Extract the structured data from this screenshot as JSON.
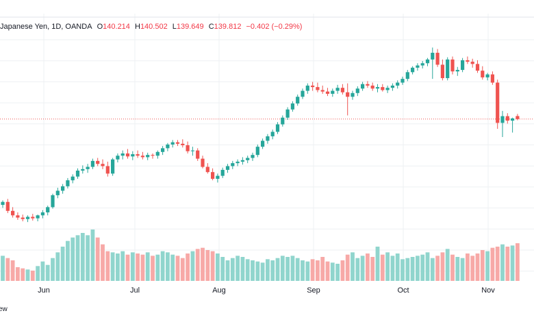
{
  "legend": {
    "symbol": "Japanese Yen, 1D, OANDA",
    "o_label": "O",
    "o_value": "140.214",
    "h_label": "H",
    "h_value": "140.502",
    "l_label": "L",
    "l_value": "139.649",
    "c_label": "C",
    "c_value": "139.812",
    "change": "−0.402 (−0.29%)"
  },
  "corner_text": "ew",
  "colors": {
    "up": "#26a69a",
    "down": "#ef5350",
    "vol_up": "#90d5cd",
    "vol_down": "#f7a9a7",
    "grid": "#eef0f3",
    "price_line": "#ef5350"
  },
  "chart_data": {
    "type": "candlestick",
    "x_tick_labels": [
      "Jun",
      "Jul",
      "Aug",
      "Sep",
      "Oct",
      "Nov"
    ],
    "last_close": 139.812,
    "candles": [
      [
        128.3,
        128.9,
        127.9,
        128.7
      ],
      [
        128.7,
        129.1,
        127.2,
        127.5
      ],
      [
        127.5,
        128.0,
        126.6,
        126.9
      ],
      [
        126.9,
        127.3,
        126.3,
        126.6
      ],
      [
        126.6,
        127.0,
        126.1,
        126.4
      ],
      [
        126.4,
        126.9,
        126.0,
        126.7
      ],
      [
        126.7,
        127.1,
        126.2,
        126.5
      ],
      [
        126.5,
        127.0,
        126.1,
        126.9
      ],
      [
        126.9,
        127.6,
        126.5,
        127.3
      ],
      [
        127.3,
        128.2,
        126.9,
        128.0
      ],
      [
        128.0,
        129.8,
        127.8,
        129.6
      ],
      [
        129.6,
        130.6,
        129.2,
        130.2
      ],
      [
        130.2,
        131.1,
        129.8,
        130.8
      ],
      [
        130.8,
        131.9,
        130.5,
        131.6
      ],
      [
        131.6,
        132.4,
        131.2,
        132.1
      ],
      [
        132.1,
        133.2,
        131.8,
        132.9
      ],
      [
        132.9,
        133.6,
        132.5,
        133.1
      ],
      [
        133.1,
        133.8,
        132.6,
        133.4
      ],
      [
        133.4,
        134.5,
        133.1,
        134.2
      ],
      [
        134.2,
        134.6,
        133.5,
        133.8
      ],
      [
        133.8,
        134.4,
        133.1,
        133.5
      ],
      [
        133.5,
        134.1,
        132.1,
        132.5
      ],
      [
        132.5,
        134.6,
        132.2,
        134.4
      ],
      [
        134.4,
        135.2,
        134.0,
        134.9
      ],
      [
        134.9,
        135.6,
        134.4,
        135.2
      ],
      [
        135.2,
        135.8,
        134.5,
        134.8
      ],
      [
        134.8,
        135.5,
        134.3,
        135.1
      ],
      [
        135.1,
        135.6,
        134.6,
        134.9
      ],
      [
        134.9,
        135.4,
        134.4,
        134.7
      ],
      [
        134.7,
        135.3,
        134.3,
        135.0
      ],
      [
        135.0,
        135.2,
        134.5,
        134.9
      ],
      [
        134.9,
        135.6,
        134.5,
        135.4
      ],
      [
        135.4,
        136.2,
        135.0,
        135.9
      ],
      [
        135.9,
        136.6,
        135.5,
        136.4
      ],
      [
        136.4,
        137.0,
        136.0,
        136.7
      ],
      [
        136.7,
        137.0,
        136.2,
        136.5
      ],
      [
        136.5,
        137.1,
        136.0,
        136.3
      ],
      [
        136.3,
        136.8,
        135.2,
        135.5
      ],
      [
        135.5,
        136.1,
        134.9,
        135.6
      ],
      [
        135.6,
        135.9,
        134.2,
        134.5
      ],
      [
        134.5,
        134.9,
        133.2,
        133.4
      ],
      [
        133.4,
        133.9,
        132.5,
        132.7
      ],
      [
        132.7,
        133.2,
        131.6,
        131.8
      ],
      [
        131.8,
        132.5,
        131.3,
        132.2
      ],
      [
        132.2,
        133.3,
        131.9,
        133.0
      ],
      [
        133.0,
        133.8,
        132.6,
        133.5
      ],
      [
        133.5,
        134.2,
        133.1,
        133.9
      ],
      [
        133.9,
        134.4,
        133.5,
        134.1
      ],
      [
        134.1,
        134.7,
        133.7,
        134.3
      ],
      [
        134.3,
        134.9,
        133.9,
        134.6
      ],
      [
        134.6,
        135.3,
        134.2,
        135.0
      ],
      [
        135.0,
        136.4,
        134.7,
        136.1
      ],
      [
        136.1,
        137.2,
        135.8,
        136.9
      ],
      [
        136.9,
        137.8,
        136.5,
        137.5
      ],
      [
        137.5,
        138.4,
        137.1,
        138.1
      ],
      [
        138.1,
        139.4,
        137.8,
        139.1
      ],
      [
        139.1,
        140.3,
        138.8,
        140.0
      ],
      [
        140.0,
        141.4,
        139.7,
        141.1
      ],
      [
        141.1,
        142.2,
        140.8,
        141.9
      ],
      [
        141.9,
        143.1,
        141.6,
        142.8
      ],
      [
        142.8,
        143.9,
        142.5,
        143.6
      ],
      [
        143.6,
        144.6,
        143.2,
        144.3
      ],
      [
        144.3,
        144.8,
        143.6,
        144.1
      ],
      [
        144.1,
        144.7,
        143.4,
        143.7
      ],
      [
        143.7,
        144.3,
        143.2,
        143.5
      ],
      [
        143.5,
        144.0,
        142.9,
        143.2
      ],
      [
        143.2,
        143.9,
        142.8,
        143.6
      ],
      [
        143.6,
        144.4,
        143.2,
        144.0
      ],
      [
        144.0,
        144.5,
        143.1,
        143.4
      ],
      [
        143.4,
        144.6,
        140.3,
        142.8
      ],
      [
        142.8,
        143.6,
        142.4,
        143.3
      ],
      [
        143.3,
        144.2,
        142.9,
        143.9
      ],
      [
        143.9,
        144.8,
        143.6,
        144.5
      ],
      [
        144.5,
        144.9,
        144.0,
        144.3
      ],
      [
        144.3,
        144.7,
        143.6,
        143.9
      ],
      [
        143.9,
        144.5,
        143.4,
        144.1
      ],
      [
        144.1,
        144.5,
        143.5,
        143.7
      ],
      [
        143.7,
        144.3,
        143.3,
        144.0
      ],
      [
        144.0,
        144.6,
        143.6,
        144.3
      ],
      [
        144.3,
        145.0,
        143.9,
        144.7
      ],
      [
        144.7,
        145.5,
        144.4,
        145.2
      ],
      [
        145.2,
        146.4,
        144.9,
        146.1
      ],
      [
        146.1,
        146.9,
        145.8,
        146.7
      ],
      [
        146.7,
        147.3,
        146.3,
        147.0
      ],
      [
        147.0,
        147.6,
        146.6,
        147.3
      ],
      [
        147.3,
        148.0,
        146.9,
        147.8
      ],
      [
        147.8,
        149.4,
        145.2,
        148.7
      ],
      [
        148.7,
        149.2,
        146.8,
        147.1
      ],
      [
        147.1,
        147.8,
        145.0,
        145.3
      ],
      [
        145.3,
        148.1,
        145.0,
        147.8
      ],
      [
        147.8,
        148.2,
        145.8,
        146.2
      ],
      [
        146.2,
        146.8,
        145.6,
        146.4
      ],
      [
        146.4,
        148.0,
        146.1,
        147.7
      ],
      [
        147.7,
        148.2,
        147.2,
        147.5
      ],
      [
        147.5,
        147.9,
        146.7,
        147.2
      ],
      [
        147.2,
        147.7,
        146.0,
        146.3
      ],
      [
        146.3,
        146.9,
        145.1,
        145.4
      ],
      [
        145.4,
        146.0,
        145.0,
        145.8
      ],
      [
        145.8,
        146.2,
        144.4,
        144.7
      ],
      [
        144.7,
        145.1,
        138.5,
        139.3
      ],
      [
        139.3,
        140.9,
        137.4,
        140.2
      ],
      [
        140.2,
        140.6,
        139.2,
        139.6
      ],
      [
        139.6,
        140.0,
        138.0,
        139.9
      ],
      [
        140.214,
        140.502,
        139.649,
        139.812
      ]
    ],
    "volume": [
      22,
      20,
      18,
      12,
      11,
      10,
      9,
      13,
      17,
      14,
      20,
      25,
      30,
      35,
      38,
      40,
      42,
      40,
      45,
      38,
      32,
      26,
      25,
      24,
      26,
      23,
      25,
      24,
      23,
      25,
      22,
      23,
      26,
      25,
      23,
      22,
      20,
      24,
      26,
      28,
      29,
      27,
      26,
      24,
      21,
      18,
      20,
      22,
      21,
      19,
      18,
      17,
      16,
      19,
      18,
      20,
      22,
      21,
      22,
      20,
      18,
      17,
      19,
      18,
      21,
      17,
      16,
      15,
      18,
      23,
      25,
      20,
      22,
      24,
      21,
      30,
      23,
      25,
      22,
      24,
      19,
      20,
      21,
      22,
      23,
      25,
      20,
      22,
      25,
      28,
      23,
      21,
      20,
      24,
      22,
      24,
      27,
      26,
      29,
      30,
      32,
      30,
      31,
      33
    ]
  }
}
